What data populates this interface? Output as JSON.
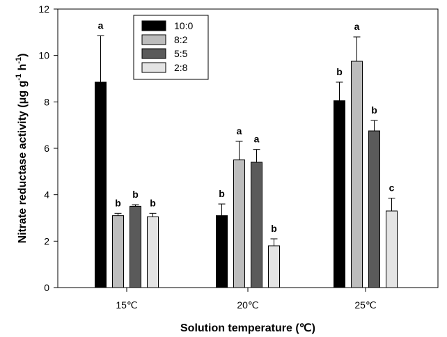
{
  "chart_data": {
    "type": "bar",
    "xlabel": "Solution temperature (℃)",
    "ylabel": "Nitrate reductase activity (μg g⁻¹ h⁻¹)",
    "ylabel_parts": {
      "main": "Nitrate reductase activity (",
      "mu": "μ",
      "g": "g g",
      "sup1": "-1",
      "h": " h",
      "sup2": "-1",
      "close": ")"
    },
    "categories": [
      "15℃",
      "20℃",
      "25℃"
    ],
    "ylim": [
      0,
      12
    ],
    "yticks": [
      0,
      2,
      4,
      6,
      8,
      10,
      12
    ],
    "grid": false,
    "legend_position": "top-left",
    "series": [
      {
        "name": "10:0",
        "color": "#000000",
        "values": [
          8.85,
          3.1,
          8.05
        ],
        "errors": [
          2.0,
          0.5,
          0.8
        ],
        "labels": [
          "a",
          "b",
          "b"
        ]
      },
      {
        "name": "8:2",
        "color": "#bdbdbd",
        "values": [
          3.1,
          5.5,
          9.75
        ],
        "errors": [
          0.1,
          0.8,
          1.05
        ],
        "labels": [
          "b",
          "a",
          "a"
        ]
      },
      {
        "name": "5:5",
        "color": "#5a5a5a",
        "values": [
          3.5,
          5.4,
          6.75
        ],
        "errors": [
          0.07,
          0.55,
          0.45
        ],
        "labels": [
          "b",
          "a",
          "b"
        ]
      },
      {
        "name": "2:8",
        "color": "#e4e4e4",
        "values": [
          3.05,
          1.8,
          3.3
        ],
        "errors": [
          0.15,
          0.3,
          0.55
        ],
        "labels": [
          "b",
          "b",
          "c"
        ]
      }
    ]
  }
}
